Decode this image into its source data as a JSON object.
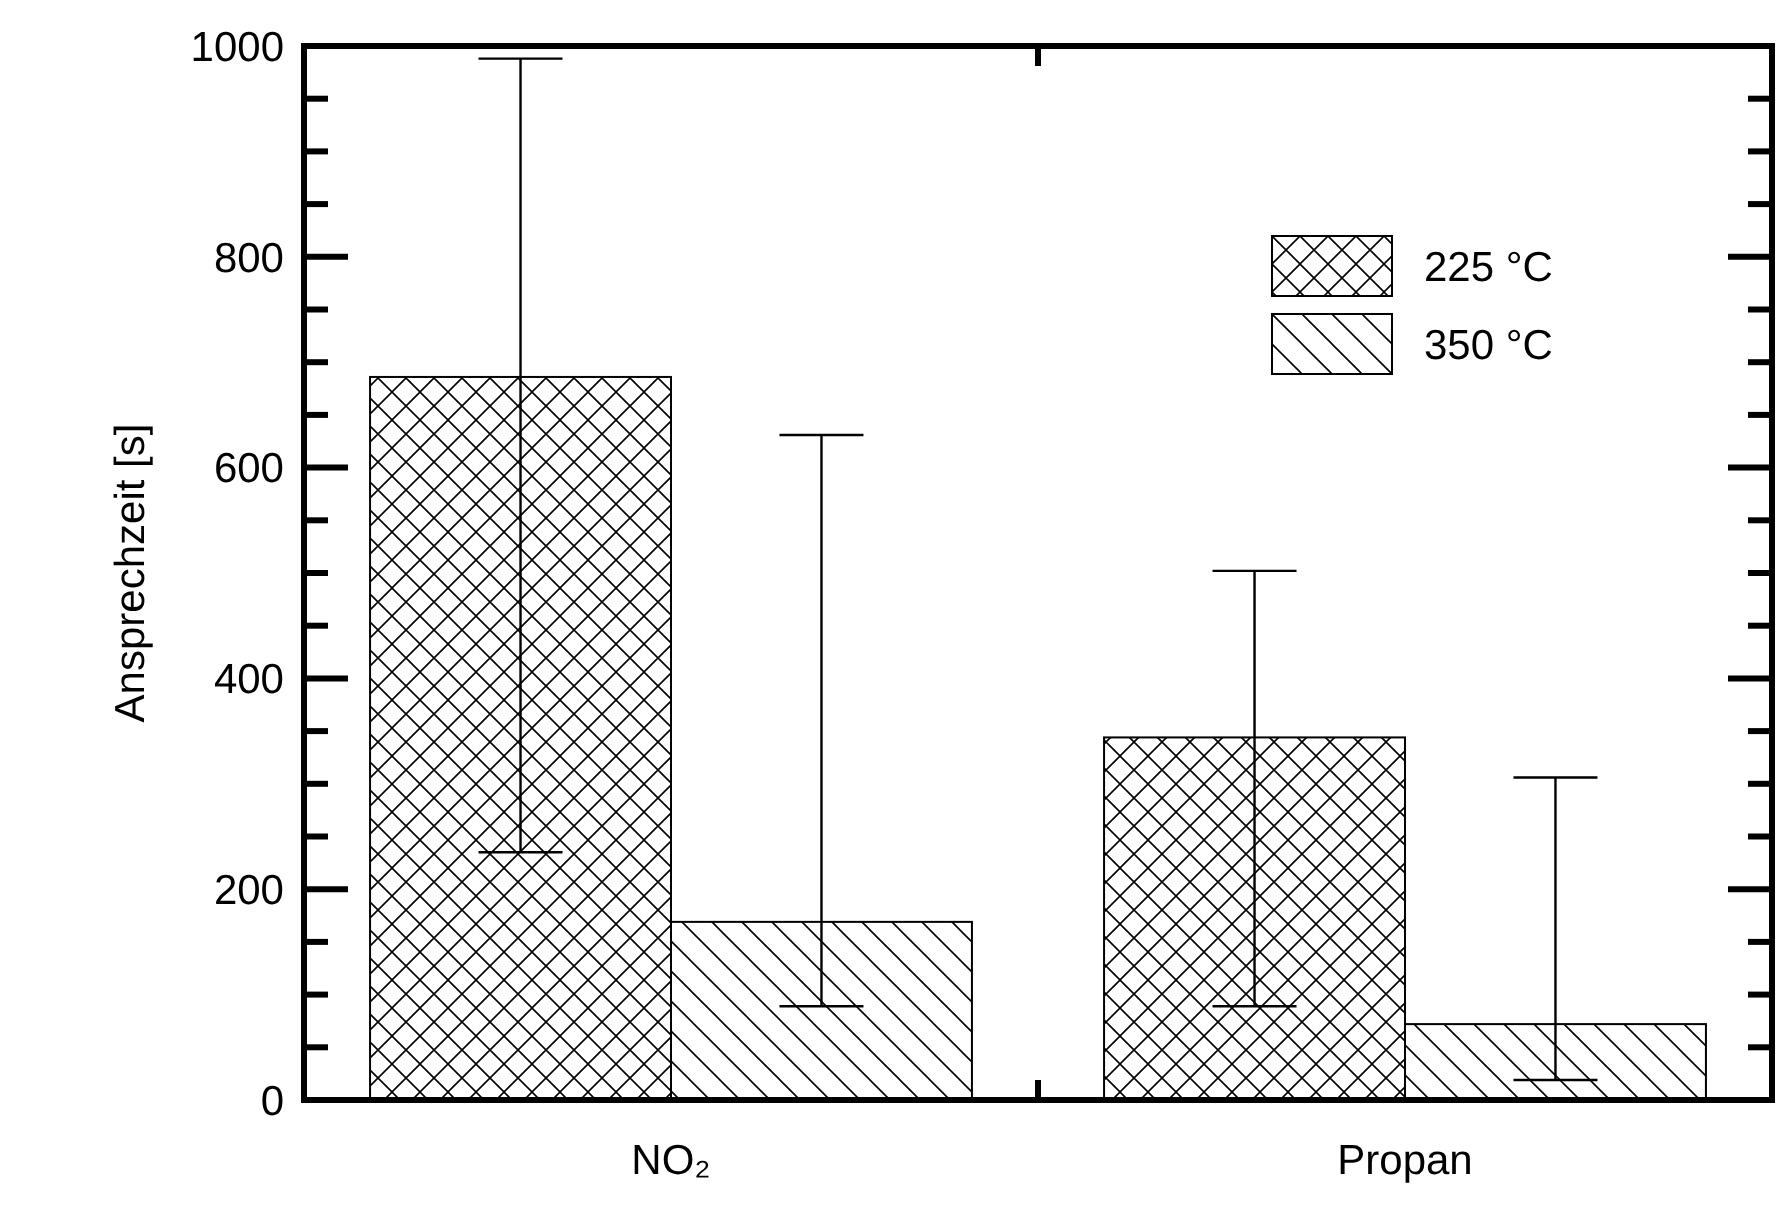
{
  "chart_data": {
    "type": "bar",
    "ylabel": "Ansprechzeit [s]",
    "categories": [
      "NO₂",
      "Propan"
    ],
    "series": [
      {
        "name": "225 °C",
        "color": "#000000",
        "values": [
          686,
          344
        ],
        "errors": [
          [
            235,
            988
          ],
          [
            89,
            502
          ]
        ]
      },
      {
        "name": "350 °C",
        "color": "#000000",
        "values": [
          169,
          72
        ],
        "errors": [
          [
            89,
            631
          ],
          [
            19,
            306
          ]
        ]
      }
    ],
    "ylim": [
      0,
      1000
    ],
    "yticks": [
      0,
      {
        "value": 50,
        "label": null
      },
      {
        "value": 100,
        "label": null
      },
      {
        "value": 150,
        "label": null
      },
      200,
      {
        "value": 250,
        "label": null
      },
      {
        "value": 300,
        "label": null
      },
      {
        "value": 350,
        "label": null
      },
      400,
      {
        "value": 450,
        "label": null
      },
      {
        "value": 500,
        "label": null
      },
      {
        "value": 550,
        "label": null
      },
      600,
      {
        "value": 650,
        "label": null
      },
      {
        "value": 700,
        "label": null
      },
      {
        "value": 750,
        "label": null
      },
      800,
      {
        "value": 850,
        "label": null
      },
      {
        "value": 900,
        "label": null
      },
      {
        "value": 950,
        "label": null
      },
      1000
    ],
    "grid": false,
    "legend": "top right"
  }
}
